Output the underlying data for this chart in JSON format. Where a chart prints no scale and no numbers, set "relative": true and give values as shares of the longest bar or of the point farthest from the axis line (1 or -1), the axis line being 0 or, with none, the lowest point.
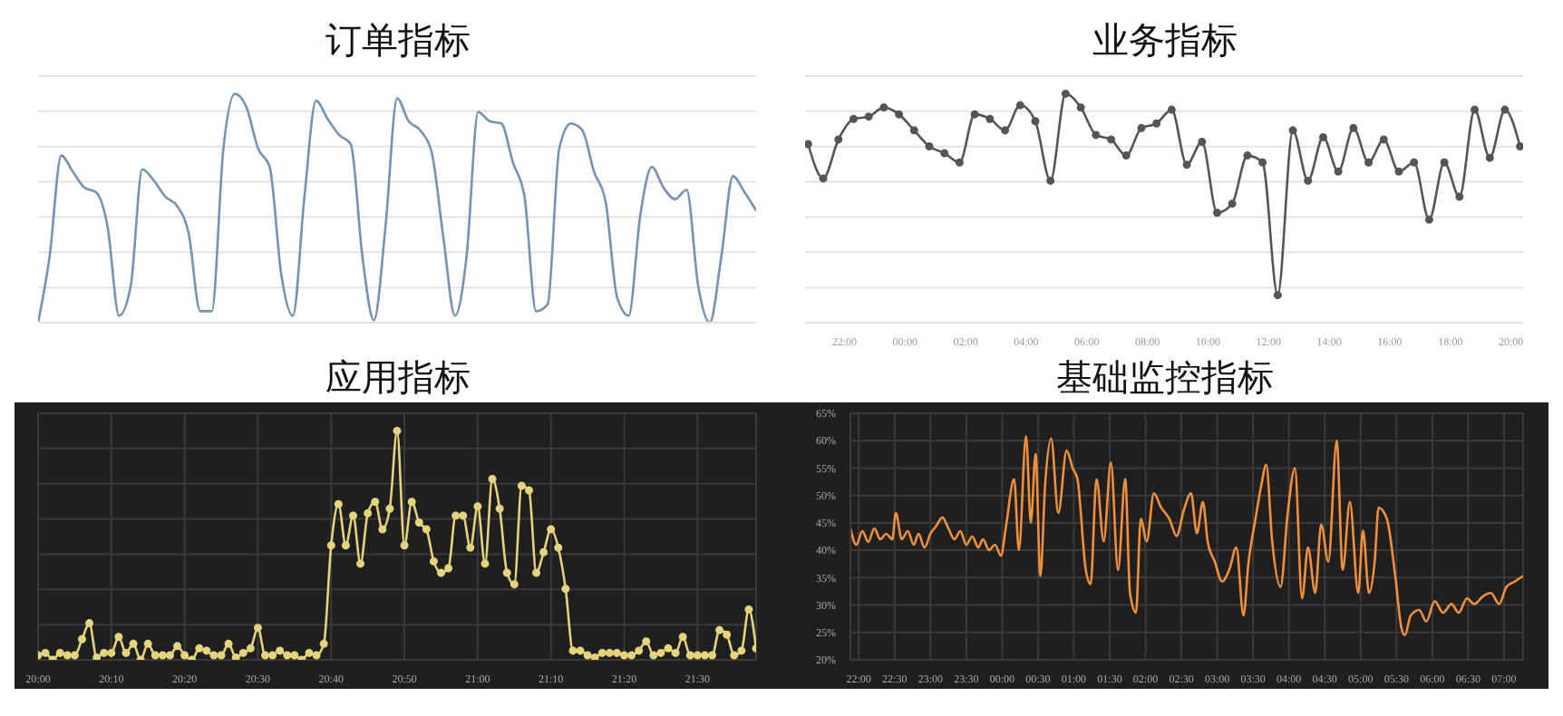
{
  "chart_data": [
    {
      "type": "line",
      "title": "订单指标",
      "relative": true,
      "grid": "y",
      "tick_labels": false,
      "categories": [
        null,
        null,
        null,
        null,
        null,
        null,
        null,
        null,
        null,
        null,
        null,
        null,
        null,
        null,
        null,
        null,
        null,
        null,
        null,
        null,
        null,
        null,
        null,
        null,
        null,
        null,
        null,
        null,
        null,
        null,
        null,
        null,
        null,
        null,
        null,
        null,
        null,
        null,
        null,
        null,
        null,
        null,
        null,
        null,
        null,
        null,
        null,
        null,
        null,
        null,
        null,
        null,
        null,
        null,
        null,
        null,
        null,
        null,
        null,
        null,
        null,
        null,
        null
      ],
      "series": [
        {
          "color": "#7592b3",
          "values": [
            0,
            0.29,
            0.73,
            0.66,
            0.59,
            0.57,
            0.42,
            0.03,
            0.16,
            0.67,
            0.62,
            0.55,
            0.51,
            0.39,
            0.05,
            0.05,
            0.76,
            1,
            0.94,
            0.76,
            0.68,
            0.21,
            0.03,
            0.55,
            0.97,
            0.89,
            0.82,
            0.78,
            0.29,
            0.01,
            0.42,
            0.98,
            0.88,
            0.84,
            0.74,
            0.37,
            0.03,
            0.29,
            0.92,
            0.88,
            0.87,
            0.7,
            0.55,
            0.05,
            0.08,
            0.76,
            0.87,
            0.84,
            0.66,
            0.53,
            0.11,
            0.03,
            0.47,
            0.68,
            0.59,
            0.54,
            0.58,
            0.16,
            0,
            0.29,
            0.64,
            0.57,
            0.49
          ]
        }
      ]
    },
    {
      "type": "line",
      "title": "业务指标",
      "relative": true,
      "grid": "y",
      "tick_labels": "x",
      "marker": "circle",
      "x": [
        "--01-01T20:48",
        "--01-01T21:18",
        "--01-01T21:48",
        "--01-01T22:18",
        "--01-01T22:48",
        "--01-01T23:18",
        "--01-01T23:48",
        "--01-02T00:18",
        "--01-02T00:48",
        "--01-02T01:18",
        "--01-02T01:48",
        "--01-02T02:18",
        "--01-02T02:48",
        "--01-02T03:18",
        "--01-02T03:48",
        "--01-02T04:18",
        "--01-02T04:48",
        "--01-02T05:18",
        "--01-02T05:48",
        "--01-02T06:18",
        "--01-02T06:48",
        "--01-02T07:18",
        "--01-02T07:48",
        "--01-02T08:18",
        "--01-02T08:48",
        "--01-02T09:18",
        "--01-02T09:48",
        "--01-02T10:18",
        "--01-02T10:48",
        "--01-02T11:18",
        "--01-02T11:48",
        "--01-02T12:18",
        "--01-02T12:48",
        "--01-02T13:18",
        "--01-02T13:48",
        "--01-02T14:18",
        "--01-02T14:48",
        "--01-02T15:18",
        "--01-02T15:48",
        "--01-02T16:18",
        "--01-02T16:48",
        "--01-02T17:18",
        "--01-02T17:48",
        "--01-02T18:18",
        "--01-02T18:48",
        "--01-02T19:18",
        "--01-02T19:48",
        "--01-02T20:18"
      ],
      "xlim": [
        "--01-01T20:42",
        "--01-02T20:24"
      ],
      "xticks": [
        {
          "value": "--01-01T22:00",
          "label": "22:00"
        },
        {
          "value": "--01-02T00:00",
          "label": "00:00"
        },
        {
          "value": "--01-02T02:00",
          "label": "02:00"
        },
        {
          "value": "--01-02T04:00",
          "label": "04:00"
        },
        {
          "value": "--01-02T06:00",
          "label": "06:00"
        },
        {
          "value": "--01-02T08:00",
          "label": "08:00"
        },
        {
          "value": "--01-02T10:00",
          "label": "10:00"
        },
        {
          "value": "--01-02T12:00",
          "label": "12:00"
        },
        {
          "value": "--01-02T14:00",
          "label": "14:00"
        },
        {
          "value": "--01-02T16:00",
          "label": "16:00"
        },
        {
          "value": "--01-02T18:00",
          "label": "18:00"
        },
        {
          "value": "--01-02T20:00",
          "label": "20:00"
        }
      ],
      "series": [
        {
          "color": "#555555",
          "values": [
            0.78,
            0.63,
            0.8,
            0.89,
            0.9,
            0.94,
            0.91,
            0.84,
            0.77,
            0.74,
            0.7,
            0.91,
            0.89,
            0.84,
            0.95,
            0.88,
            0.62,
            1,
            0.94,
            0.82,
            0.8,
            0.73,
            0.85,
            0.87,
            0.93,
            0.69,
            0.79,
            0.48,
            0.52,
            0.73,
            0.7,
            0.12,
            0.84,
            0.62,
            0.81,
            0.66,
            0.85,
            0.7,
            0.8,
            0.66,
            0.7,
            0.45,
            0.7,
            0.55,
            0.93,
            0.72,
            0.93,
            0.77
          ]
        }
      ]
    },
    {
      "type": "line",
      "title": "应用指标",
      "relative": true,
      "grid": true,
      "tick_labels": "x",
      "marker": "circle",
      "categories": [
        "20:00",
        null,
        null,
        null,
        null,
        null,
        null,
        null,
        null,
        null,
        "20:10",
        null,
        null,
        null,
        null,
        null,
        null,
        null,
        null,
        null,
        "20:20",
        null,
        null,
        null,
        null,
        null,
        null,
        null,
        null,
        null,
        "20:30",
        null,
        null,
        null,
        null,
        null,
        null,
        null,
        null,
        null,
        "20:40",
        null,
        null,
        null,
        null,
        null,
        null,
        null,
        null,
        null,
        "20:50",
        null,
        null,
        null,
        null,
        null,
        null,
        null,
        null,
        null,
        "21:00",
        null,
        null,
        null,
        null,
        null,
        null,
        null,
        null,
        null,
        "21:10",
        null,
        null,
        null,
        null,
        null,
        null,
        null,
        null,
        null,
        "21:20",
        null,
        null,
        null,
        null,
        null,
        null,
        null,
        null,
        null,
        "21:30",
        null,
        null,
        null,
        null,
        null,
        null,
        null,
        null
      ],
      "series": [
        {
          "color": "#e6d47c",
          "values": [
            0.02,
            0.03,
            0,
            0.03,
            0.02,
            0.02,
            0.09,
            0.16,
            0.01,
            0.03,
            0.03,
            0.1,
            0.03,
            0.07,
            0,
            0.07,
            0.02,
            0.02,
            0.02,
            0.06,
            0.02,
            0,
            0.05,
            0.04,
            0.02,
            0.02,
            0.07,
            0.01,
            0.03,
            0.05,
            0.14,
            0.02,
            0.02,
            0.04,
            0.02,
            0.02,
            0,
            0.03,
            0.02,
            0.07,
            0.5,
            0.68,
            0.5,
            0.63,
            0.42,
            0.64,
            0.69,
            0.57,
            0.66,
            1,
            0.5,
            0.69,
            0.6,
            0.57,
            0.43,
            0.38,
            0.4,
            0.63,
            0.63,
            0.49,
            0.67,
            0.42,
            0.79,
            0.66,
            0.38,
            0.33,
            0.76,
            0.74,
            0.38,
            0.47,
            0.57,
            0.49,
            0.31,
            0.04,
            0.04,
            0.02,
            0.01,
            0.03,
            0.03,
            0.03,
            0.02,
            0.02,
            0.04,
            0.08,
            0.02,
            0.03,
            0.05,
            0.03,
            0.1,
            0.02,
            0.02,
            0.02,
            0.02,
            0.13,
            0.11,
            0.02,
            0.04,
            0.22,
            0.05
          ]
        }
      ]
    },
    {
      "type": "line",
      "title": "基础监控指标",
      "grid": true,
      "x": [
        "--01-01T21:53",
        "--01-01T21:58",
        "--01-01T22:03",
        "--01-01T22:08",
        "--01-01T22:13",
        "--01-01T22:18",
        "--01-01T22:23",
        "--01-01T22:28",
        "--01-01T22:31",
        "--01-01T22:36",
        "--01-01T22:41",
        "--01-01T22:46",
        "--01-01T22:50",
        "--01-01T22:55",
        "--01-01T23:00",
        "--01-01T23:05",
        "--01-01T23:10",
        "--01-01T23:15",
        "--01-01T23:20",
        "--01-01T23:25",
        "--01-01T23:30",
        "--01-01T23:35",
        "--01-01T23:40",
        "--01-01T23:44",
        "--01-01T23:49",
        "--01-01T23:54",
        "--01-01T23:59",
        "--01-02T00:03",
        "--01-02T00:10",
        "--01-02T00:14",
        "--01-02T00:20",
        "--01-02T00:24",
        "--01-02T00:28",
        "--01-02T00:32",
        "--01-02T00:36",
        "--01-02T00:41",
        "--01-02T00:47",
        "--01-02T00:54",
        "--01-02T00:59",
        "--01-02T01:03",
        "--01-02T01:10",
        "--01-02T01:14",
        "--01-02T01:19",
        "--01-02T01:25",
        "--01-02T01:31",
        "--01-02T01:37",
        "--01-02T01:43",
        "--01-02T01:47",
        "--01-02T01:52",
        "--01-02T01:56",
        "--01-02T02:01",
        "--01-02T02:07",
        "--01-02T02:13",
        "--01-02T02:20",
        "--01-02T02:26",
        "--01-02T02:32",
        "--01-02T02:38",
        "--01-02T02:43",
        "--01-02T02:48",
        "--01-02T02:52",
        "--01-02T02:58",
        "--01-02T03:04",
        "--01-02T03:10",
        "--01-02T03:16",
        "--01-02T03:22",
        "--01-02T03:26",
        "--01-02T03:32",
        "--01-02T03:37",
        "--01-02T03:41",
        "--01-02T03:46",
        "--01-02T03:53",
        "--01-02T03:59",
        "--01-02T04:05",
        "--01-02T04:11",
        "--01-02T04:16",
        "--01-02T04:22",
        "--01-02T04:27",
        "--01-02T04:33",
        "--01-02T04:40",
        "--01-02T04:45",
        "--01-02T04:51",
        "--01-02T04:58",
        "--01-02T05:02",
        "--01-02T05:07",
        "--01-02T05:12",
        "--01-02T05:15",
        "--01-02T05:22",
        "--01-02T05:29",
        "--01-02T05:34",
        "--01-02T05:37",
        "--01-02T05:42",
        "--01-02T05:49",
        "--01-02T05:55",
        "--01-02T06:02",
        "--01-02T06:09",
        "--01-02T06:16",
        "--01-02T06:22",
        "--01-02T06:29",
        "--01-02T06:35",
        "--01-02T06:43",
        "--01-02T06:49",
        "--01-02T06:56",
        "--01-02T07:02",
        "--01-02T07:09",
        "--01-02T07:16"
      ],
      "xlim": [
        "--01-01T21:53",
        "--01-02T07:16"
      ],
      "xticks": [
        {
          "value": "--01-01T22:00",
          "label": "22:00"
        },
        {
          "value": "--01-01T22:30",
          "label": "22:30"
        },
        {
          "value": "--01-01T23:00",
          "label": "23:00"
        },
        {
          "value": "--01-01T23:30",
          "label": "23:30"
        },
        {
          "value": "--01-02T00:00",
          "label": "00:00"
        },
        {
          "value": "--01-02T00:30",
          "label": "00:30"
        },
        {
          "value": "--01-02T01:00",
          "label": "01:00"
        },
        {
          "value": "--01-02T01:30",
          "label": "01:30"
        },
        {
          "value": "--01-02T02:00",
          "label": "02:00"
        },
        {
          "value": "--01-02T02:30",
          "label": "02:30"
        },
        {
          "value": "--01-02T03:00",
          "label": "03:00"
        },
        {
          "value": "--01-02T03:30",
          "label": "03:30"
        },
        {
          "value": "--01-02T04:00",
          "label": "04:00"
        },
        {
          "value": "--01-02T04:30",
          "label": "04:30"
        },
        {
          "value": "--01-02T05:00",
          "label": "05:00"
        },
        {
          "value": "--01-02T05:30",
          "label": "05:30"
        },
        {
          "value": "--01-02T06:00",
          "label": "06:00"
        },
        {
          "value": "--01-02T06:30",
          "label": "06:30"
        },
        {
          "value": "--01-02T07:00",
          "label": "07:00"
        }
      ],
      "ylim": [
        20,
        65
      ],
      "yticks": [
        {
          "value": 20,
          "label": "20%"
        },
        {
          "value": 25,
          "label": "25%"
        },
        {
          "value": 30,
          "label": "30%"
        },
        {
          "value": 35,
          "label": "35%"
        },
        {
          "value": 40,
          "label": "40%"
        },
        {
          "value": 45,
          "label": "45%"
        },
        {
          "value": 50,
          "label": "50%"
        },
        {
          "value": 55,
          "label": "55%"
        },
        {
          "value": 60,
          "label": "60%"
        },
        {
          "value": 65,
          "label": "65%"
        }
      ],
      "series": [
        {
          "color": "#f0903a",
          "values": [
            44,
            41,
            43.5,
            41.5,
            44,
            42,
            43,
            42,
            46.8,
            42,
            43.5,
            41,
            43,
            40.5,
            43,
            44.5,
            46,
            44,
            42,
            43.5,
            41,
            42.5,
            40.5,
            42,
            40,
            41,
            39,
            44,
            53,
            40,
            60.8,
            45,
            57.6,
            35.3,
            52,
            60.4,
            46.8,
            58.2,
            55,
            53,
            36.4,
            33.8,
            53,
            41.6,
            56,
            36.4,
            53,
            32.2,
            28.6,
            45.7,
            41.6,
            50.4,
            47.8,
            45.7,
            42.6,
            47.3,
            50.4,
            43.1,
            48.8,
            41.6,
            37.9,
            34.3,
            36.4,
            40.5,
            28.1,
            37.4,
            45.7,
            52,
            55.6,
            41.6,
            33.3,
            46.8,
            55,
            31.2,
            40.5,
            32.2,
            44.7,
            37.9,
            60,
            36.4,
            48.8,
            32.2,
            43.6,
            32.2,
            38.5,
            47.8,
            45.7,
            35.3,
            26,
            24.5,
            28.1,
            29.1,
            27,
            30.7,
            28.6,
            30.2,
            28.6,
            31.2,
            30.2,
            31.7,
            32.2,
            30.2,
            33.3,
            34.3,
            35.3
          ]
        }
      ]
    }
  ]
}
